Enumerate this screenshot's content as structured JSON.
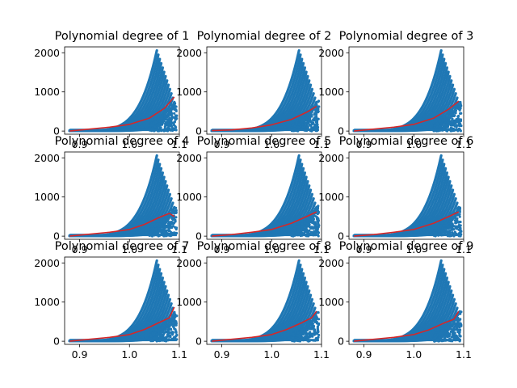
{
  "colors": {
    "scatter": "#1f77b4",
    "fit": "#d62728",
    "background": "#ffffff"
  },
  "chart_data": [
    {
      "type": "scatter",
      "title": "Polynomial degree of 1",
      "degree": 1,
      "xlim": [
        0.87,
        1.1
      ],
      "ylim": [
        -80,
        2150
      ],
      "xticks": [
        "0.9",
        "1.0",
        "1.1"
      ],
      "yticks": [
        "0",
        "1000",
        "2000"
      ],
      "fit_line": {
        "x": [
          0.88,
          0.92,
          0.96,
          1.0,
          1.04,
          1.07,
          1.09
        ],
        "y": [
          0,
          50,
          100,
          170,
          330,
          580,
          870
        ]
      }
    },
    {
      "type": "scatter",
      "title": "Polynomial degree of 2",
      "degree": 2,
      "xlim": [
        0.87,
        1.1
      ],
      "ylim": [
        -80,
        2150
      ],
      "xticks": [
        "0.9",
        "1.0",
        "1.1"
      ],
      "yticks": [
        "0",
        "1000",
        "2000"
      ],
      "fit_line": {
        "x": [
          0.88,
          0.92,
          0.96,
          1.0,
          1.04,
          1.07,
          1.09
        ],
        "y": [
          10,
          30,
          80,
          160,
          300,
          480,
          630
        ]
      }
    },
    {
      "type": "scatter",
      "title": "Polynomial degree of 3",
      "degree": 3,
      "xlim": [
        0.87,
        1.1
      ],
      "ylim": [
        -80,
        2150
      ],
      "xticks": [
        "0.9",
        "1.0",
        "1.1"
      ],
      "yticks": [
        "0",
        "1000",
        "2000"
      ],
      "fit_line": {
        "x": [
          0.88,
          0.92,
          0.96,
          1.0,
          1.04,
          1.07,
          1.09
        ],
        "y": [
          0,
          50,
          100,
          170,
          330,
          560,
          760
        ]
      }
    },
    {
      "type": "scatter",
      "title": "Polynomial degree of 4",
      "degree": 4,
      "xlim": [
        0.87,
        1.1
      ],
      "ylim": [
        -80,
        2150
      ],
      "xticks": [
        "0.9",
        "1.0",
        "1.1"
      ],
      "yticks": [
        "0",
        "1000",
        "2000"
      ],
      "fit_line": {
        "x": [
          0.88,
          0.92,
          0.96,
          1.0,
          1.03,
          1.06,
          1.08,
          1.09
        ],
        "y": [
          0,
          50,
          100,
          170,
          300,
          480,
          580,
          500
        ]
      }
    },
    {
      "type": "scatter",
      "title": "Polynomial degree of 5",
      "degree": 5,
      "xlim": [
        0.87,
        1.1
      ],
      "ylim": [
        -80,
        2150
      ],
      "xticks": [
        "0.9",
        "1.0",
        "1.1"
      ],
      "yticks": [
        "0",
        "1000",
        "2000"
      ],
      "fit_line": {
        "x": [
          0.88,
          0.92,
          0.96,
          1.0,
          1.04,
          1.07,
          1.09
        ],
        "y": [
          0,
          40,
          100,
          170,
          330,
          500,
          620
        ]
      }
    },
    {
      "type": "scatter",
      "title": "Polynomial degree of 6",
      "degree": 6,
      "xlim": [
        0.87,
        1.1
      ],
      "ylim": [
        -80,
        2150
      ],
      "xticks": [
        "0.9",
        "1.0",
        "1.1"
      ],
      "yticks": [
        "0",
        "1000",
        "2000"
      ],
      "fit_line": {
        "x": [
          0.88,
          0.92,
          0.96,
          1.0,
          1.04,
          1.07,
          1.09
        ],
        "y": [
          0,
          40,
          100,
          170,
          330,
          500,
          620
        ]
      }
    },
    {
      "type": "scatter",
      "title": "Polynomial degree of 7",
      "degree": 7,
      "xlim": [
        0.87,
        1.1
      ],
      "ylim": [
        -80,
        2150
      ],
      "xticks": [
        "0.9",
        "1.0",
        "1.1"
      ],
      "yticks": [
        "0",
        "1000",
        "2000"
      ],
      "fit_line": {
        "x": [
          0.88,
          0.92,
          0.96,
          1.0,
          1.03,
          1.06,
          1.08,
          1.09
        ],
        "y": [
          0,
          50,
          100,
          170,
          300,
          480,
          600,
          870
        ]
      }
    },
    {
      "type": "scatter",
      "title": "Polynomial degree of 8",
      "degree": 8,
      "xlim": [
        0.87,
        1.1
      ],
      "ylim": [
        -80,
        2150
      ],
      "xticks": [
        "0.9",
        "1.0",
        "1.1"
      ],
      "yticks": [
        "0",
        "1000",
        "2000"
      ],
      "fit_line": {
        "x": [
          0.88,
          0.92,
          0.96,
          1.0,
          1.03,
          1.06,
          1.08,
          1.09
        ],
        "y": [
          0,
          50,
          100,
          170,
          300,
          470,
          600,
          760
        ]
      }
    },
    {
      "type": "scatter",
      "title": "Polynomial degree of 9",
      "degree": 9,
      "xlim": [
        0.87,
        1.1
      ],
      "ylim": [
        -80,
        2150
      ],
      "xticks": [
        "0.9",
        "1.0",
        "1.1"
      ],
      "yticks": [
        "0",
        "1000",
        "2000"
      ],
      "fit_line": {
        "x": [
          0.88,
          0.92,
          0.96,
          1.0,
          1.03,
          1.06,
          1.08,
          1.09
        ],
        "y": [
          0,
          50,
          100,
          170,
          290,
          460,
          560,
          760
        ]
      }
    }
  ]
}
